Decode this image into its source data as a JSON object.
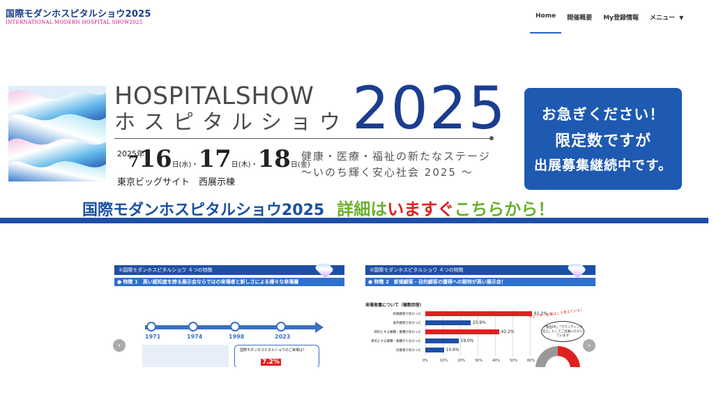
{
  "header": {
    "logo_main": "国際モダンホスピタルショウ2025",
    "logo_sub": "INTERNATIONAL MODERN HOSPITAL SHOW2025",
    "nav": [
      {
        "label": "Home",
        "active": true
      },
      {
        "label": "開催概要"
      },
      {
        "label": "My登録情報"
      },
      {
        "label": "メニュー"
      }
    ]
  },
  "banner": {
    "title_en": "HOSPITALSHOW",
    "title_jp": "ホスピタルショウ",
    "year_big": "2025",
    "date_year": "2025年",
    "date_month": "7",
    "day1": "16",
    "dow1": "(水)",
    "day2": "17",
    "dow2": "(木)",
    "day3": "18",
    "dow3": "(金)",
    "day_unit": "日",
    "sep": "・",
    "venue": "東京ビッグサイト　西展示棟",
    "tagline1": "健康・医療・福祉の新たなステージ",
    "tagline2": "～いのち輝く安心社会 2025 ～",
    "promo_line1": "お急ぎください！",
    "promo_line2": "限定数ですが",
    "promo_line3": "出展募集継続中です。",
    "cta_name": "国際モダンホスピタルショウ2025",
    "cta_detail_1": "詳細は",
    "cta_detail_2": "いますぐ",
    "cta_detail_3": "こちらから！"
  },
  "carousel": {
    "prev_icon": "chevron-left-icon",
    "next_icon": "chevron-right-icon",
    "slide1": {
      "head": "①国際モダンホスピタルショウ ４つの特徴",
      "sub": "● 特徴 1　高い認知度を誇る展示会ならではの来場者と新しさによる様々な来場層",
      "years": [
        "1971",
        "1974",
        "1998",
        "2023"
      ],
      "q_title": "国際モダンホスピタルショウのご来場は？",
      "pct": "7.2%"
    },
    "slide2": {
      "head": "②国際モダンホスピタルショウ ４つの特徴",
      "sub": "● 特徴 2　新規顧客・目的顧客の獲得への期待が高い展示会！",
      "chart_title": "来場者層について（複数回答）",
      "repeat_note": "リピーター企業はこう考えている!",
      "speech": "「製品PR」「ブランディング向上」としてご出展いただいています",
      "axis": [
        "0%",
        "10%",
        "20%",
        "30%",
        "40%",
        "50%",
        "60%"
      ]
    }
  },
  "chart_data": {
    "type": "bar",
    "title": "来場者層について（複数回答）",
    "categories": [
      "新規顧客が多かった",
      "既存顧客が多かった",
      "目的とする職種・業種が多かった",
      "目的とする職種・業種が少なかった",
      "同業者が多かった"
    ],
    "values": [
      61.2,
      25.9,
      42.2,
      19.0,
      10.6
    ],
    "value_labels": [
      "61.2%",
      "25.9%",
      "42.2%",
      "19.0%",
      "10.6%"
    ],
    "colors": [
      "#e02020",
      "#1e4fa6",
      "#e02020",
      "#1e4fa6",
      "#1e4fa6"
    ],
    "xlim": [
      0,
      60
    ]
  }
}
